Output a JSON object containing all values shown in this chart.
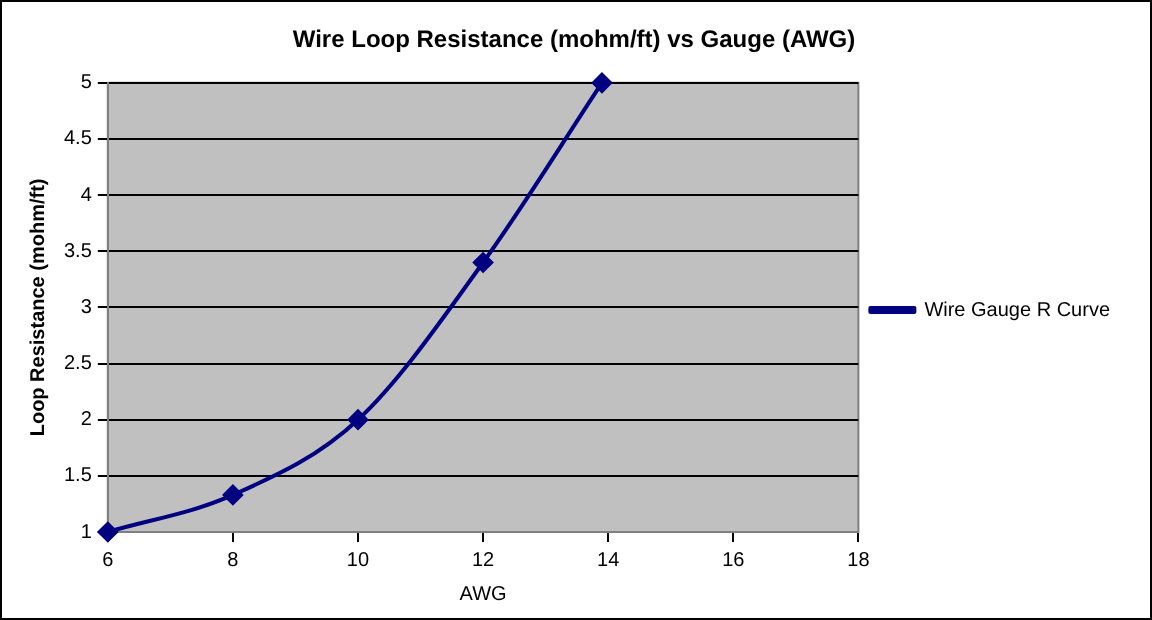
{
  "chart_data": {
    "type": "line",
    "title": "Wire Loop Resistance (mohm/ft) vs Gauge (AWG)",
    "xlabel": "AWG",
    "ylabel": "Loop Resistance (mohm/ft)",
    "x": [
      6,
      8,
      10,
      12,
      13.9
    ],
    "series": [
      {
        "name": "Wire Gauge R Curve",
        "color": "#000080",
        "values": [
          1,
          1.33,
          2,
          3.4,
          5
        ]
      }
    ],
    "xlim": [
      6,
      18
    ],
    "xticks": [
      6,
      8,
      10,
      12,
      14,
      16,
      18
    ],
    "ylim": [
      1,
      5
    ],
    "yticks": [
      1,
      1.5,
      2,
      2.5,
      3,
      3.5,
      4,
      4.5,
      5
    ],
    "grid": "y",
    "legend": "right",
    "marker": "diamond",
    "line_style": "solid"
  }
}
